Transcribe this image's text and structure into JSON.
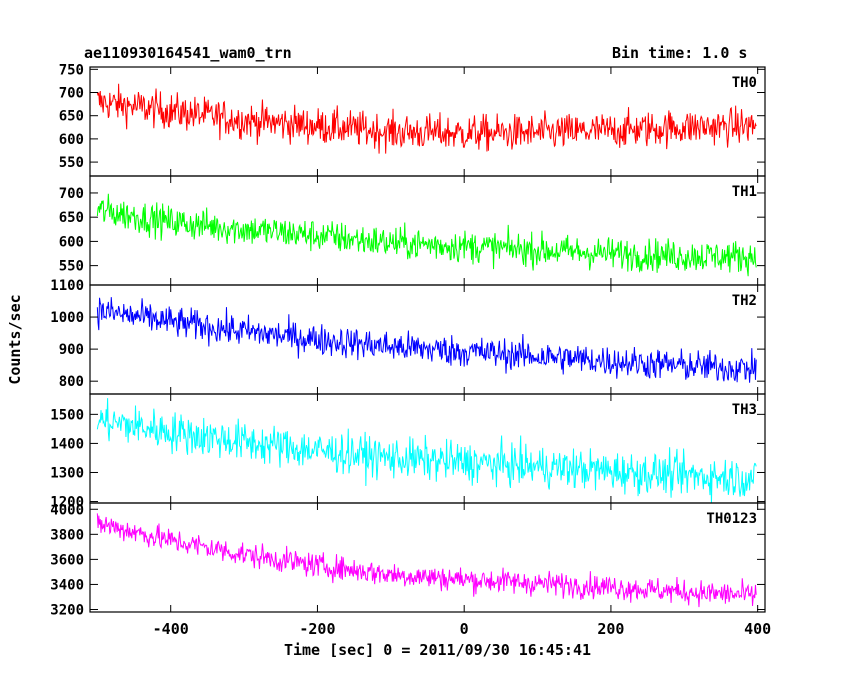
{
  "header": {
    "title": "ae110930164541_wam0_trn",
    "bin_time": "Bin time: 1.0 s"
  },
  "chart_data": {
    "type": "line",
    "title": "ae110930164541_wam0_trn",
    "subtitle": "Bin time: 1.0 s",
    "xlabel": "Time [sec] 0 = 2011/09/30 16:45:41",
    "ylabel": "Counts/sec",
    "xlim": [
      -510,
      410
    ],
    "x_ticks": [
      -400,
      -200,
      0,
      200,
      400
    ],
    "bin_time_s": 1.0,
    "grid": false,
    "panels": [
      {
        "name": "TH0",
        "color": "#ff0000",
        "ylim": [
          520,
          755
        ],
        "y_ticks": [
          550,
          600,
          650,
          700,
          750
        ],
        "trend": [
          [
            -500,
            680
          ],
          [
            -400,
            660
          ],
          [
            -300,
            640
          ],
          [
            -200,
            628
          ],
          [
            -100,
            615
          ],
          [
            0,
            612
          ],
          [
            100,
            613
          ],
          [
            200,
            618
          ],
          [
            300,
            625
          ],
          [
            400,
            628
          ]
        ],
        "noise": 28
      },
      {
        "name": "TH1",
        "color": "#00ff00",
        "ylim": [
          510,
          735
        ],
        "y_ticks": [
          550,
          600,
          650,
          700
        ],
        "trend": [
          [
            -500,
            665
          ],
          [
            -400,
            640
          ],
          [
            -300,
            625
          ],
          [
            -200,
            612
          ],
          [
            -100,
            597
          ],
          [
            0,
            590
          ],
          [
            100,
            582
          ],
          [
            200,
            575
          ],
          [
            300,
            570
          ],
          [
            400,
            568
          ]
        ],
        "noise": 24
      },
      {
        "name": "TH2",
        "color": "#0000ff",
        "ylim": [
          760,
          1100
        ],
        "y_ticks": [
          800,
          900,
          1000,
          1100
        ],
        "trend": [
          [
            -500,
            1020
          ],
          [
            -400,
            985
          ],
          [
            -300,
            955
          ],
          [
            -200,
            930
          ],
          [
            -100,
            908
          ],
          [
            0,
            893
          ],
          [
            100,
            878
          ],
          [
            200,
            862
          ],
          [
            300,
            848
          ],
          [
            400,
            838
          ]
        ],
        "noise": 35
      },
      {
        "name": "TH3",
        "color": "#00ffff",
        "ylim": [
          1195,
          1570
        ],
        "y_ticks": [
          1200,
          1300,
          1400,
          1500
        ],
        "trend": [
          [
            -500,
            1480
          ],
          [
            -400,
            1440
          ],
          [
            -300,
            1405
          ],
          [
            -200,
            1375
          ],
          [
            -100,
            1350
          ],
          [
            0,
            1335
          ],
          [
            100,
            1320
          ],
          [
            200,
            1305
          ],
          [
            300,
            1290
          ],
          [
            400,
            1280
          ]
        ],
        "noise": 50
      },
      {
        "name": "TH0123",
        "color": "#ff00ff",
        "ylim": [
          3180,
          4050
        ],
        "y_ticks": [
          3200,
          3400,
          3600,
          3800,
          4000
        ],
        "trend": [
          [
            -500,
            3890
          ],
          [
            -400,
            3750
          ],
          [
            -300,
            3640
          ],
          [
            -200,
            3550
          ],
          [
            -100,
            3480
          ],
          [
            0,
            3440
          ],
          [
            100,
            3410
          ],
          [
            200,
            3380
          ],
          [
            300,
            3340
          ],
          [
            400,
            3310
          ]
        ],
        "noise": 70
      }
    ]
  }
}
